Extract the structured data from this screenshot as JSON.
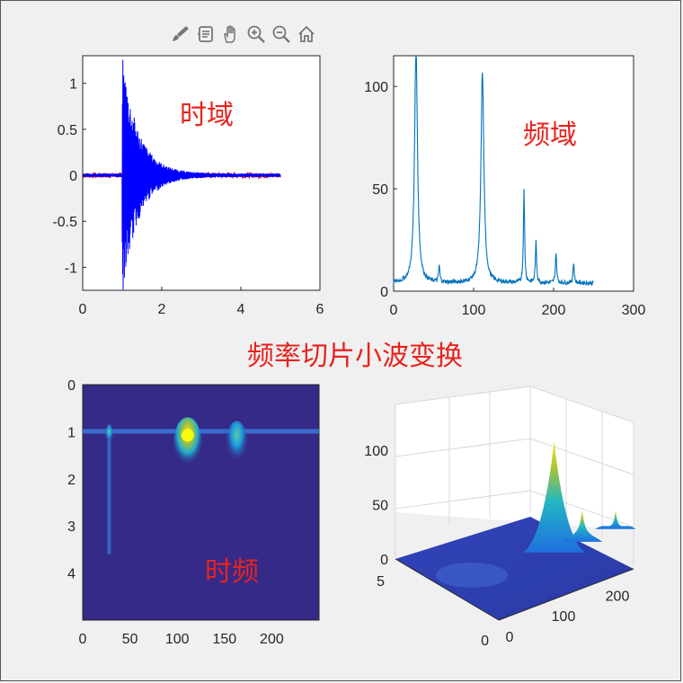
{
  "toolbar": {
    "icons": [
      "brush-icon",
      "data-tips-icon",
      "pan-hand-icon",
      "zoom-in-icon",
      "zoom-out-icon",
      "home-icon"
    ]
  },
  "colors": {
    "time_blue": "#0000ff",
    "time_red": "#ff0000",
    "freq_line": "#0072bd",
    "note": "#e8231e",
    "parula_bg": "#352a87",
    "parula_peak": "#f9fb0e"
  },
  "center_title": "频率切片小波变换",
  "chart_data": [
    {
      "type": "line",
      "annotation": "时域",
      "xlim": [
        0,
        6
      ],
      "ylim": [
        -1.25,
        1.3
      ],
      "xticks": [
        "0",
        "2",
        "4",
        "6"
      ],
      "yticks": [
        "1",
        "0.5",
        "0",
        "-0.5",
        "-1"
      ],
      "ytick_values": [
        1,
        0.5,
        0,
        -0.5,
        -1
      ],
      "xtick_values": [
        0,
        2,
        4,
        6
      ],
      "series": [
        {
          "x_range": [
            0,
            5
          ],
          "onset": 1.0,
          "peak_amplitude": 1.3,
          "decay": 0.9,
          "color": "#0000ff"
        },
        {
          "x_range": [
            0,
            5
          ],
          "noise_amplitude": 0.03,
          "color": "#ff0000"
        }
      ]
    },
    {
      "type": "line",
      "annotation": "频域",
      "xlim": [
        0,
        300
      ],
      "ylim": [
        0,
        115
      ],
      "xticks": [
        "0",
        "100",
        "200",
        "300"
      ],
      "yticks": [
        "100",
        "50",
        "0"
      ],
      "xtick_values": [
        0,
        100,
        200,
        300
      ],
      "ytick_values": [
        100,
        50,
        0
      ],
      "x_range": [
        0,
        250
      ],
      "peaks": [
        {
          "x": 28,
          "y": 115
        },
        {
          "x": 57,
          "y": 8
        },
        {
          "x": 111,
          "y": 103
        },
        {
          "x": 163,
          "y": 45
        },
        {
          "x": 178,
          "y": 20
        },
        {
          "x": 203,
          "y": 15
        },
        {
          "x": 225,
          "y": 10
        }
      ],
      "baseline": 3
    },
    {
      "type": "heatmap",
      "annotation": "时频",
      "xlim": [
        0,
        250
      ],
      "ylim": [
        0,
        5
      ],
      "xticks": [
        "0",
        "50",
        "100",
        "150",
        "200"
      ],
      "xtick_values": [
        0,
        50,
        100,
        150,
        200
      ],
      "yticks": [
        "0",
        "1",
        "2",
        "3",
        "4"
      ],
      "ytick_values": [
        0,
        1,
        2,
        3,
        4
      ],
      "hot_spots": [
        {
          "x": 111,
          "y": 1.0,
          "intensity": 1.0
        },
        {
          "x": 163,
          "y": 1.0,
          "intensity": 0.55
        },
        {
          "x": 28,
          "y": 1.0,
          "intensity": 0.4
        }
      ]
    },
    {
      "type": "surface",
      "zticks": [
        "100",
        "50",
        "0"
      ],
      "ztick_values": [
        100,
        50,
        0
      ],
      "xticks": [
        "0",
        "100",
        "200"
      ],
      "xtick_values": [
        0,
        100,
        200
      ],
      "yticks": [
        "5",
        "0"
      ],
      "ytick_values": [
        5,
        0
      ],
      "zlim": [
        0,
        120
      ],
      "peaks": [
        {
          "x": 111,
          "z": 103
        },
        {
          "x": 163,
          "z": 30
        },
        {
          "x": 225,
          "z": 18
        }
      ]
    }
  ]
}
